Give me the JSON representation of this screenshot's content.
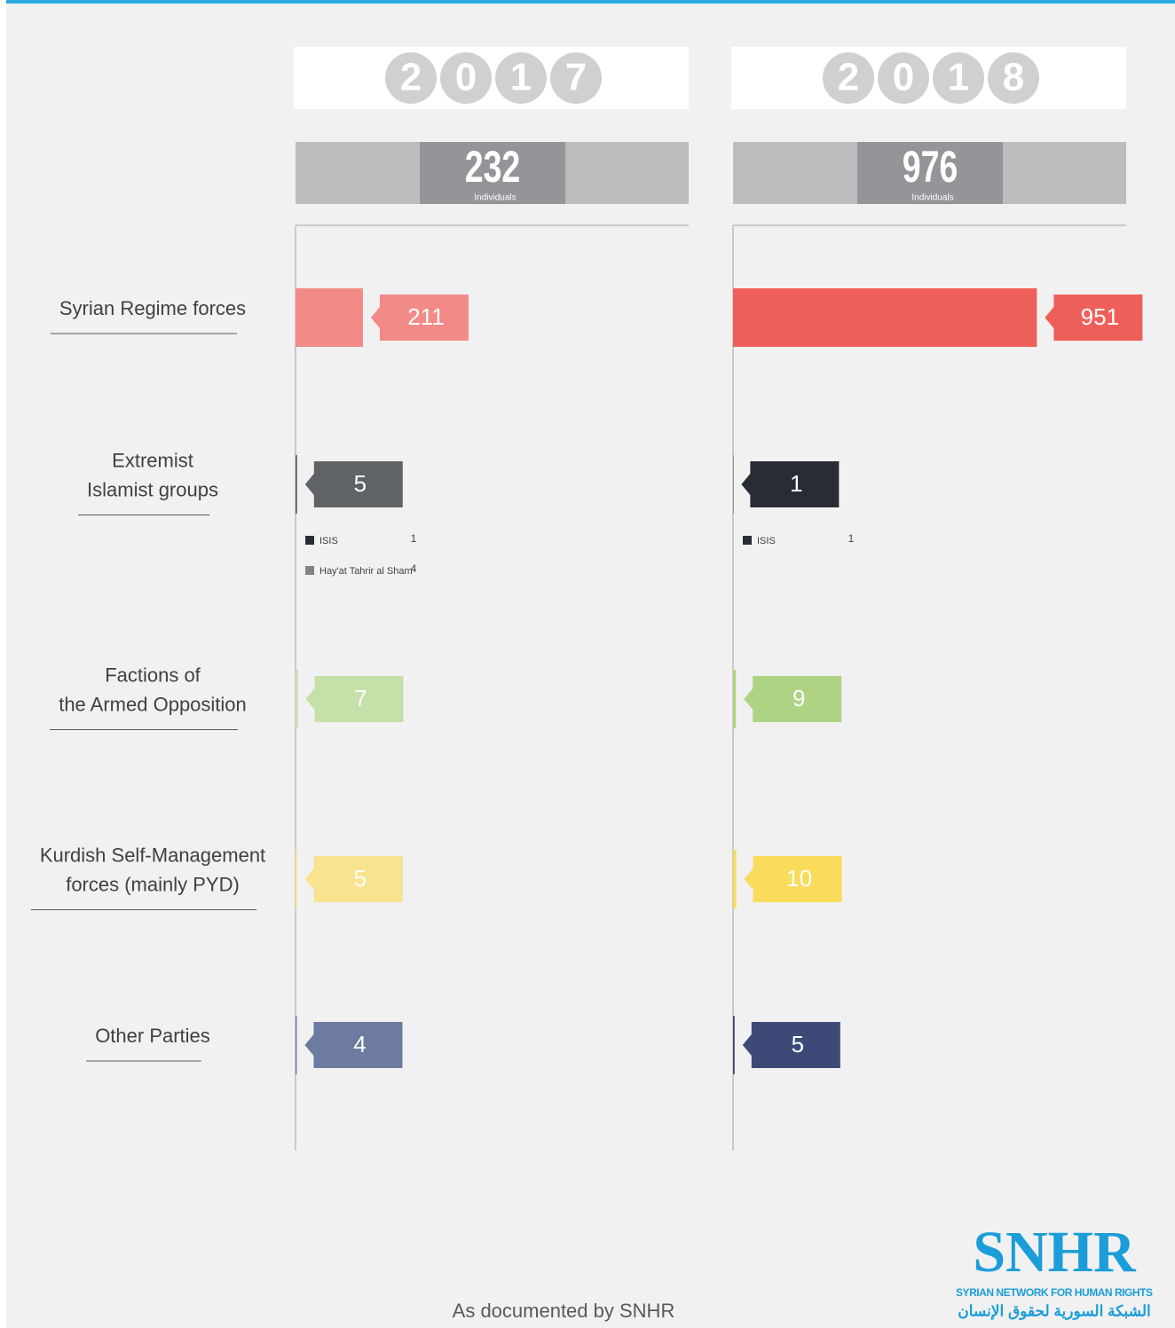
{
  "categories": [
    [
      "Syrian Regime forces"
    ],
    [
      "Extremist",
      "Islamist groups"
    ],
    [
      "Factions of",
      "the Armed Opposition"
    ],
    [
      "Kurdish Self-Management",
      "forces (mainly PYD)"
    ],
    [
      "Other Parties"
    ]
  ],
  "chart_data": [
    {
      "type": "bar",
      "year_digits": [
        "2",
        "0",
        "1",
        "7"
      ],
      "total": 232,
      "total_label": "Individuals",
      "values": [
        211,
        5,
        7,
        5,
        4
      ],
      "colors": [
        "#f28b87",
        "#5f6367",
        "#c5e0a9",
        "#f8e38e",
        "#6c7b9f"
      ],
      "breakdown": [
        {
          "name": "ISIS",
          "value": 1,
          "color": "#282d35"
        },
        {
          "name": "Hay'at Tahrir al Sham",
          "value": 4,
          "color": "#808285"
        }
      ]
    },
    {
      "type": "bar",
      "year_digits": [
        "2",
        "0",
        "1",
        "8"
      ],
      "total": 976,
      "total_label": "Individuals",
      "values": [
        951,
        1,
        9,
        10,
        5
      ],
      "colors": [
        "#ef5f5a",
        "#282d35",
        "#aed483",
        "#f9dc5c",
        "#3d4a78"
      ],
      "breakdown": [
        {
          "name": "ISIS",
          "value": 1,
          "color": "#282d35"
        }
      ]
    }
  ],
  "footer": {
    "source": "As documented by SNHR",
    "logo": "SNHR",
    "org_en": "SYRIAN NETWORK FOR HUMAN RIGHTS",
    "org_ar": "الشبكة السورية لحقوق الإنسان"
  }
}
